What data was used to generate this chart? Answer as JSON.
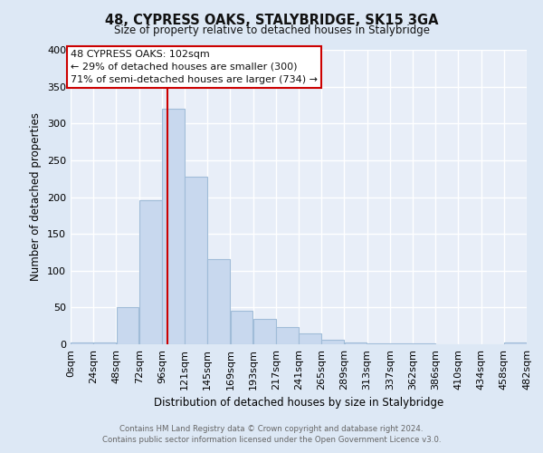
{
  "title": "48, CYPRESS OAKS, STALYBRIDGE, SK15 3GA",
  "subtitle": "Size of property relative to detached houses in Stalybridge",
  "xlabel": "Distribution of detached houses by size in Stalybridge",
  "ylabel": "Number of detached properties",
  "bar_color": "#c8d8ee",
  "bar_edge_color": "#a0bcd8",
  "marker_color": "#cc0000",
  "marker_value": 102,
  "bin_edges": [
    0,
    24,
    48,
    72,
    96,
    120,
    144,
    168,
    192,
    216,
    240,
    264,
    288,
    312,
    336,
    360,
    384,
    408,
    432,
    456,
    480
  ],
  "bin_labels": [
    "0sqm",
    "24sqm",
    "48sqm",
    "72sqm",
    "96sqm",
    "121sqm",
    "145sqm",
    "169sqm",
    "193sqm",
    "217sqm",
    "241sqm",
    "265sqm",
    "289sqm",
    "313sqm",
    "337sqm",
    "362sqm",
    "386sqm",
    "410sqm",
    "434sqm",
    "458sqm",
    "482sqm"
  ],
  "counts": [
    2,
    2,
    51,
    196,
    320,
    228,
    116,
    45,
    35,
    24,
    15,
    6,
    2,
    1,
    1,
    1,
    0,
    0,
    0,
    2
  ],
  "ylim": [
    0,
    400
  ],
  "yticks": [
    0,
    50,
    100,
    150,
    200,
    250,
    300,
    350,
    400
  ],
  "annotation_line1": "48 CYPRESS OAKS: 102sqm",
  "annotation_line2": "← 29% of detached houses are smaller (300)",
  "annotation_line3": "71% of semi-detached houses are larger (734) →",
  "annotation_box_color": "#ffffff",
  "annotation_box_edge": "#cc0000",
  "footer_line1": "Contains HM Land Registry data © Crown copyright and database right 2024.",
  "footer_line2": "Contains public sector information licensed under the Open Government Licence v3.0.",
  "background_color": "#dde8f5",
  "plot_bg_color": "#e8eef8"
}
